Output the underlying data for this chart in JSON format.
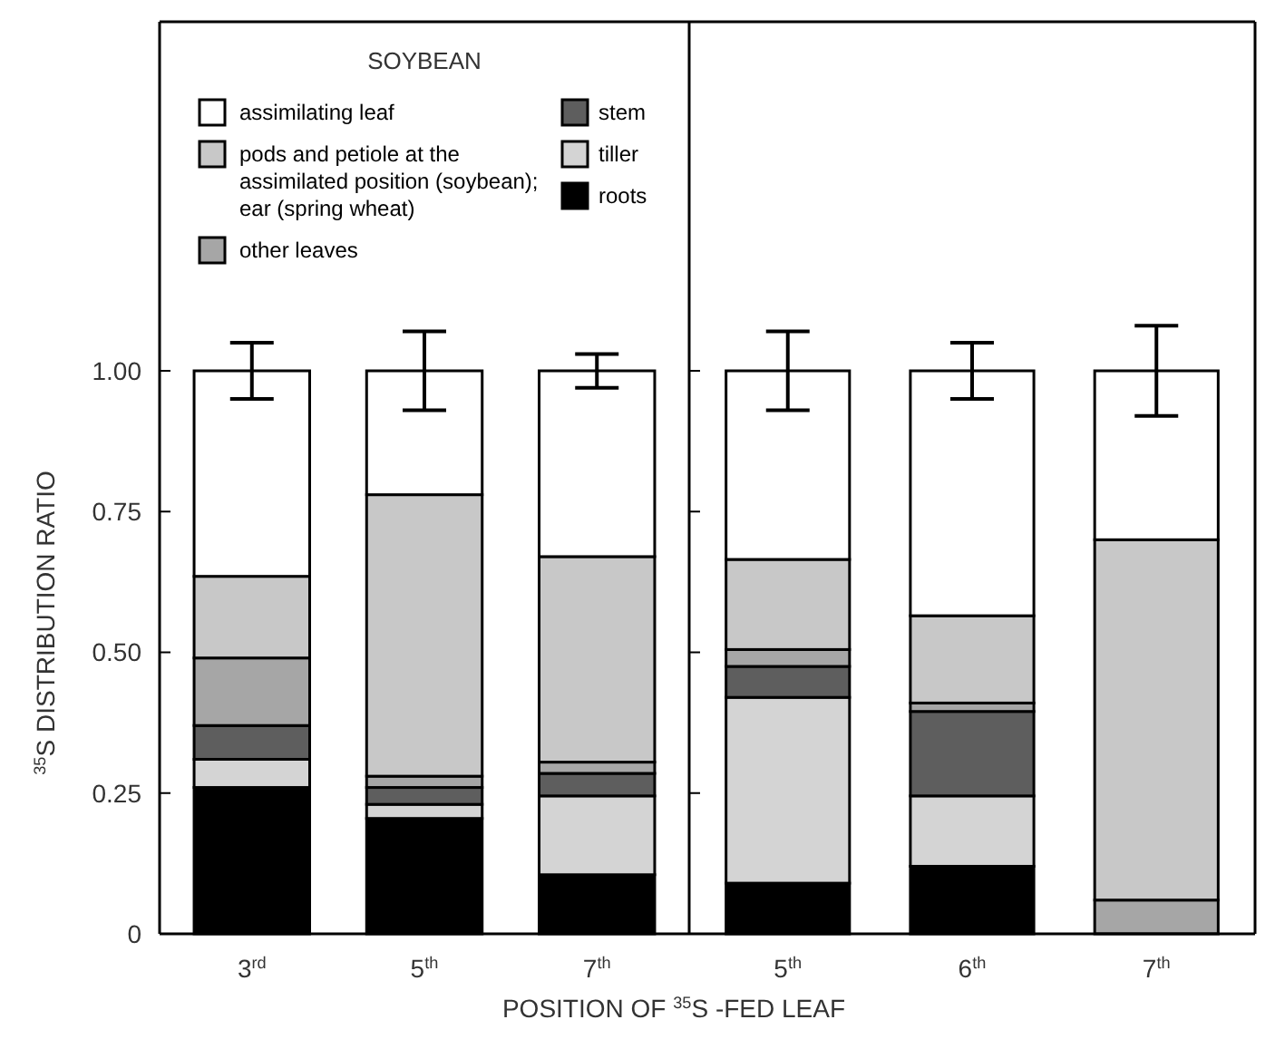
{
  "chart_data": [
    {
      "type": "bar",
      "title": "SOYBEAN",
      "ylabel": "$^{35}$S DISTRIBUTION RATIO",
      "xlabel": "POSITION OF $^{35}$S -FED LEAF",
      "stacked": true,
      "categories": [
        "3$^{rd}$",
        "5$^{th}$",
        "7$^{th}$"
      ],
      "ylim": [
        0,
        1.62
      ],
      "yticks": [
        {
          "value": 0,
          "label": "0"
        },
        {
          "value": 0.25,
          "label": "0.25"
        },
        {
          "value": 0.5,
          "label": "0.50"
        },
        {
          "value": 0.75,
          "label": "0.75"
        },
        {
          "value": 1,
          "label": "1.00"
        }
      ],
      "legend": "top",
      "grid": false,
      "series": [
        {
          "name": "roots",
          "color": "#000000",
          "values": [
            0.26,
            0.205,
            0.105
          ]
        },
        {
          "name": "tiller",
          "color": "#d4d4d4",
          "values": [
            0.05,
            0.025,
            0.14
          ]
        },
        {
          "name": "stem",
          "color": "#5e5e5e",
          "values": [
            0.06,
            0.03,
            0.04
          ]
        },
        {
          "name": "other leaves",
          "color": "#a6a6a6",
          "values": [
            0.12,
            0.02,
            0.02
          ]
        },
        {
          "name": "pods and petiole at the assimilated position (soybean); ear (spring wheat)",
          "color": "#c8c8c8",
          "values": [
            0.145,
            0.5,
            0.365
          ]
        },
        {
          "name": "assimilating leaf",
          "color": "#ffffff",
          "values": [
            0.365,
            0.22,
            0.33
          ],
          "errors": [
            0.05,
            0.07,
            0.03
          ]
        }
      ]
    },
    {
      "type": "bar",
      "stacked": true,
      "categories": [
        "5$^{th}$",
        "6$^{th}$",
        "7$^{th}$"
      ],
      "ylim": [
        0,
        1.62
      ],
      "yticks": [
        0,
        0.25,
        0.5,
        0.75,
        1
      ],
      "tick_labels": "x",
      "legend": false,
      "grid": false,
      "series": [
        {
          "color": "#000000",
          "values": [
            0.09,
            0.12,
            0
          ]
        },
        {
          "color": "#d4d4d4",
          "values": [
            0.33,
            0.125,
            0
          ]
        },
        {
          "color": "#5e5e5e",
          "values": [
            0.055,
            0.15,
            0
          ]
        },
        {
          "color": "#a6a6a6",
          "values": [
            0.03,
            0.015,
            0.06
          ]
        },
        {
          "color": "#c8c8c8",
          "values": [
            0.16,
            0.155,
            0.64
          ]
        },
        {
          "color": "#ffffff",
          "values": [
            0.335,
            0.435,
            0.3
          ],
          "errors": [
            0.07,
            0.05,
            0.08
          ]
        }
      ]
    }
  ]
}
